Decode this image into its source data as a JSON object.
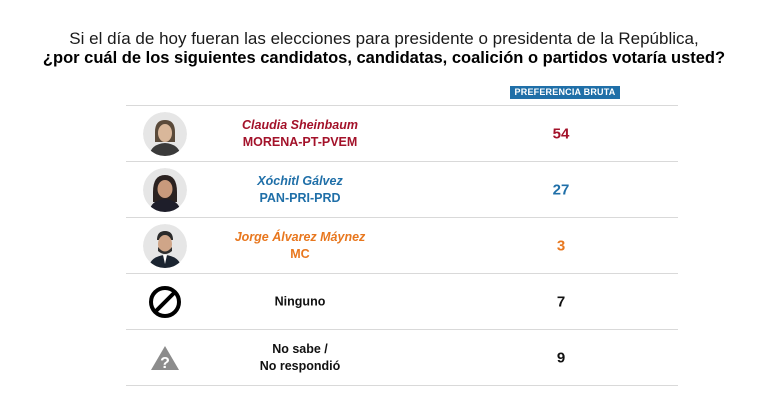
{
  "title_line1": "Si el día de hoy fueran las elecciones para presidente o presidenta de la República,",
  "title_line2": "¿por cuál de los siguientes candidatos, candidatas, coalición o partidos votaría usted?",
  "column_header": "PREFERENCIA BRUTA",
  "colors": {
    "header_bg": "#1f6fa8",
    "morena": "#a3122a",
    "pan": "#1f6fa8",
    "mc": "#e8771e",
    "neutral": "#111111"
  },
  "chart_data": {
    "type": "table",
    "title": "¿por cuál de los siguientes candidatos, candidatas, coalición o partidos votaría usted?",
    "columns": [
      "PREFERENCIA BRUTA"
    ],
    "rows": [
      {
        "name": "Claudia Sheinbaum",
        "party": "MORENA-PT-PVEM",
        "value": 54,
        "icon": "candidate-photo",
        "color": "#a3122a"
      },
      {
        "name": "Xóchitl Gálvez",
        "party": "PAN-PRI-PRD",
        "value": 27,
        "icon": "candidate-photo",
        "color": "#1f6fa8"
      },
      {
        "name": "Jorge Álvarez Máynez",
        "party": "MC",
        "value": 3,
        "icon": "candidate-photo",
        "color": "#e8771e"
      },
      {
        "name": "Ninguno",
        "party": "",
        "value": 7,
        "icon": "prohibited-icon",
        "color": "#111111"
      },
      {
        "name": "No sabe /",
        "party": "No respondió",
        "value": 9,
        "icon": "question-triangle-icon",
        "color": "#111111"
      }
    ]
  }
}
